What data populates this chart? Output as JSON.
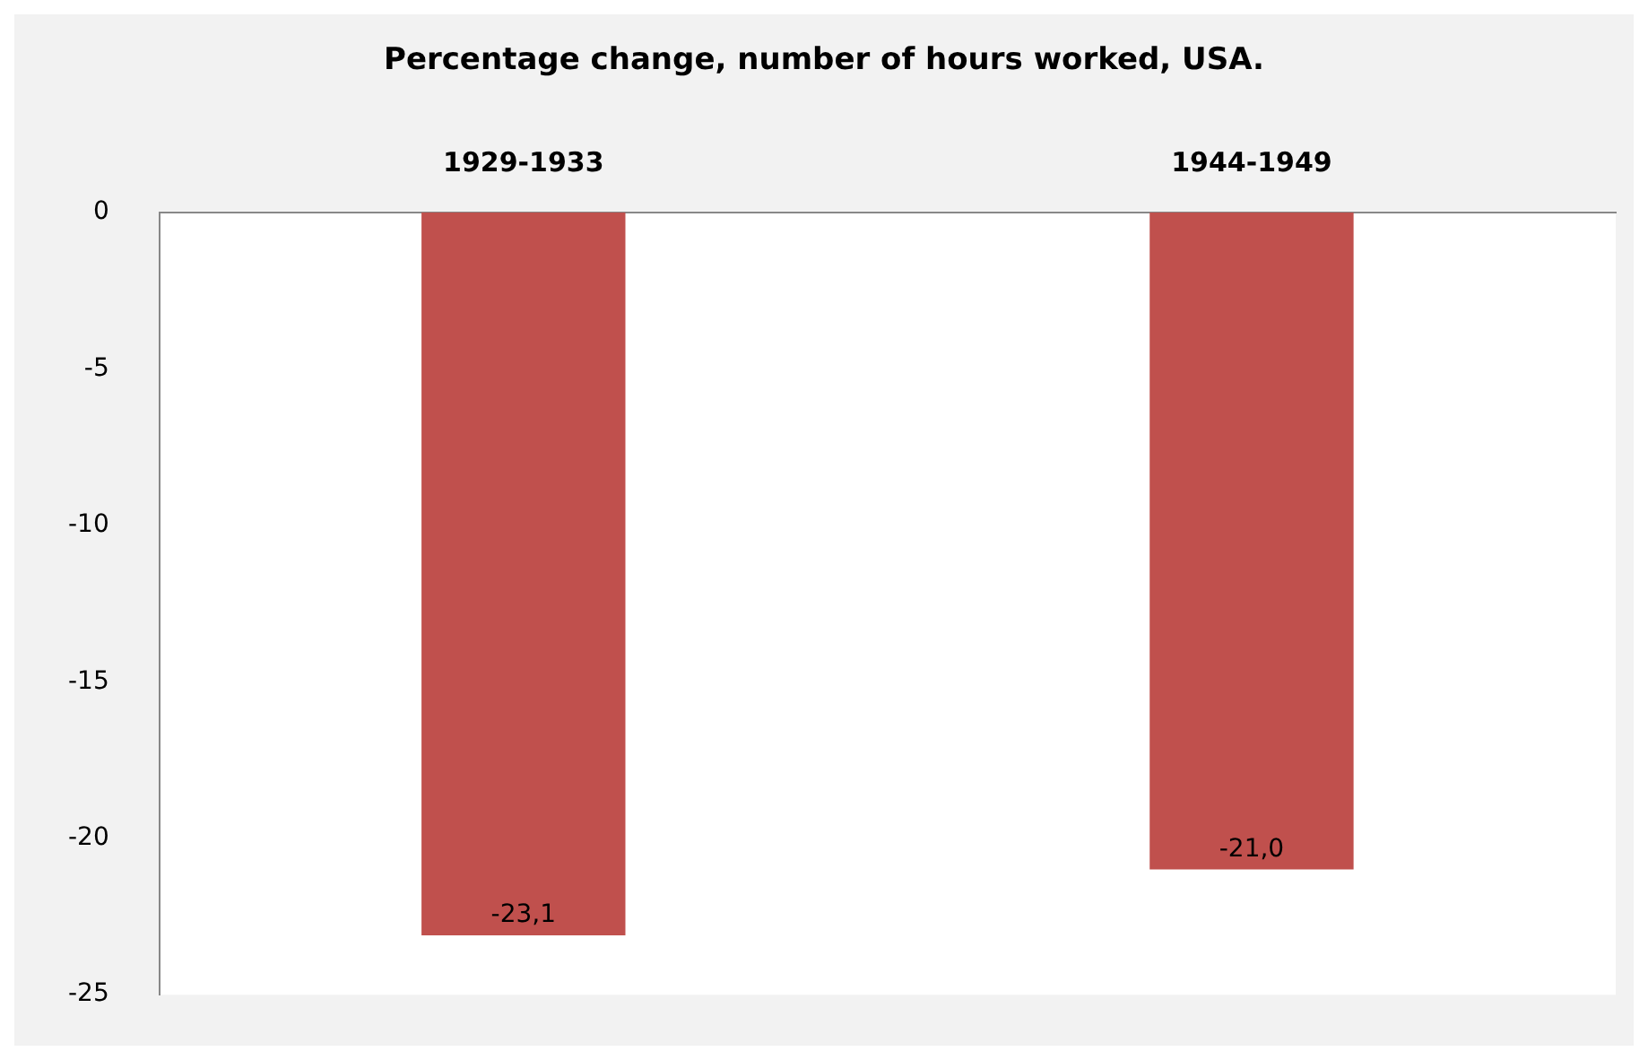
{
  "chart_data": {
    "type": "bar",
    "title": "Percentage change, number of hours worked, USA.",
    "categories": [
      "1929-1933",
      "1944-1949"
    ],
    "values": [
      -23.1,
      -21.0
    ],
    "color": "#c0504d",
    "value_labels": [
      "-23,1",
      "-21,0"
    ],
    "ylim": [
      -25,
      0
    ],
    "yticks": [
      0,
      -5,
      -10,
      -15,
      -20,
      -25
    ],
    "grid": false,
    "legend": false
  }
}
